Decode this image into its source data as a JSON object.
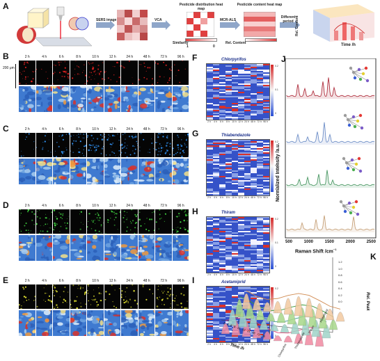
{
  "panels": {
    "A": "A",
    "B": "B",
    "C": "C",
    "D": "D",
    "E": "E",
    "F": "F",
    "G": "G",
    "H": "H",
    "I": "I",
    "J": "J",
    "K": "K"
  },
  "workflow": {
    "sers_image": "SERS image",
    "vca": "VCA",
    "mcr_als": "MCR-ALS",
    "different_period": "Different period",
    "distribution_title": "Pesticide distribution heat map",
    "content_title": "Pesticide content heat map",
    "similarity": "Similarity",
    "rel_content": "Rel. Content",
    "scale_1": "1",
    "scale_0": "0",
    "time_axis": "Time /h",
    "content_axis": "Rel. Content"
  },
  "times": [
    "2 h",
    "4 h",
    "6 h",
    "8 h",
    "10 h",
    "12 h",
    "24 h",
    "48 h",
    "72 h",
    "96 h"
  ],
  "scale_bar": "200 μm",
  "heatmaps": [
    {
      "title": "Chlorpyrifos",
      "dot": "#e33"
    },
    {
      "title": "Thiabendazole",
      "dot": "#3a7"
    },
    {
      "title": "Thiram",
      "dot": "#3a3"
    },
    {
      "title": "Acetamiprid",
      "dot": "#aa3"
    }
  ],
  "heat_ticks": [
    "2 h",
    "4 h",
    "6 h",
    "8 h",
    "10 h",
    "12 h",
    "24 h",
    "48 h",
    "72 h",
    "96 h"
  ],
  "cbar_labels": [
    "0.2",
    "0.1",
    "0"
  ],
  "raman": {
    "ylabel": "Normalized Intensity /a.u.",
    "xlabel": "Raman Shift /cm",
    "xlabel_sup": "−1",
    "xticks": [
      "500",
      "1000",
      "1500",
      "2000",
      "2500"
    ],
    "colors": [
      "#b0303f",
      "#6f90c8",
      "#4d9a66",
      "#c7a27a"
    ]
  },
  "waterfall": {
    "zlabel": "Rel. Peak",
    "xlabel": "Time /h",
    "zticks": [
      "1.2",
      "1.0",
      "0.8",
      "0.6",
      "0.4",
      "0.2",
      "0.0"
    ],
    "xticks": [
      "2",
      "4",
      "6",
      "8",
      "10",
      "12",
      "24",
      "48",
      "72",
      "96"
    ],
    "categories": [
      "Chlorpyrifos",
      "Thiabendazole",
      "Thiram",
      "Acetamiprid"
    ]
  }
}
